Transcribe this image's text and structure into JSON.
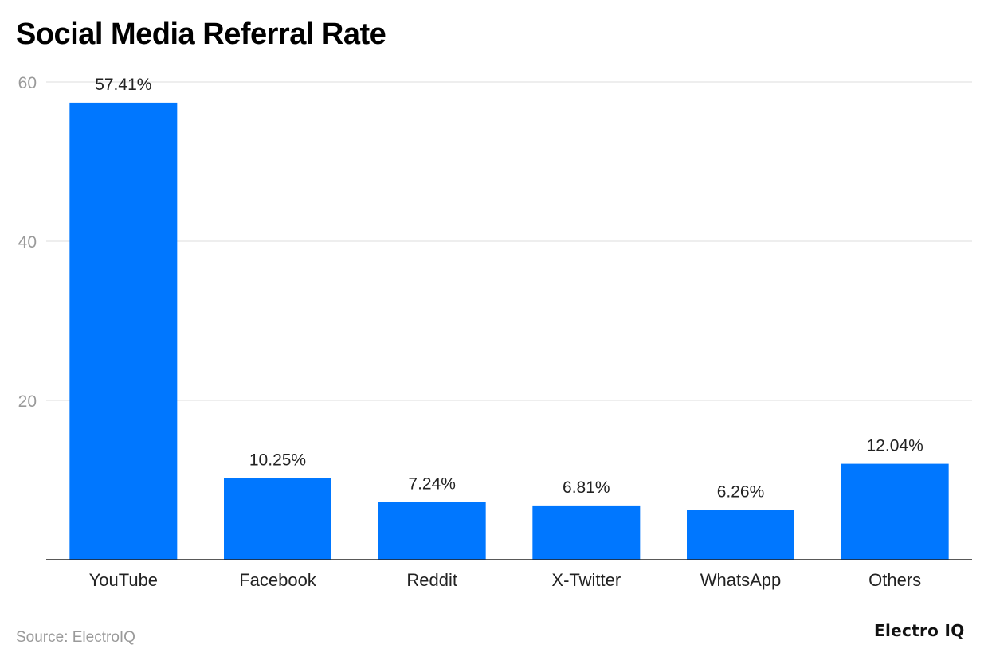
{
  "chart_data": {
    "type": "bar",
    "title": "Social Media Referral Rate",
    "categories": [
      "YouTube",
      "Facebook",
      "Reddit",
      "X-Twitter",
      "WhatsApp",
      "Others"
    ],
    "values": [
      57.41,
      10.25,
      7.24,
      6.81,
      6.26,
      12.04
    ],
    "data_labels": [
      "57.41%",
      "10.25%",
      "7.24%",
      "6.81%",
      "6.26%",
      "12.04%"
    ],
    "xlabel": "",
    "ylabel": "",
    "ylim": [
      0,
      60
    ],
    "yticks": [
      20,
      40,
      60
    ],
    "grid": true,
    "bar_color": "#0077ff"
  },
  "source": "Source: ElectroIQ",
  "logo": "Electro IQ"
}
